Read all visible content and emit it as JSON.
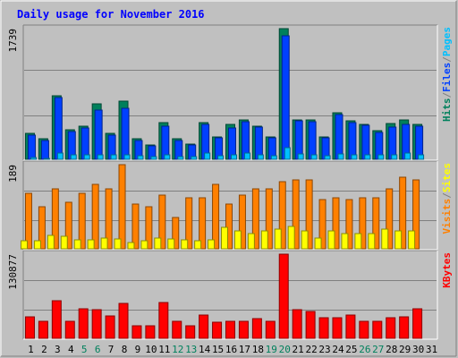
{
  "colors": {
    "background": "#c0c0c0",
    "plot_background": "#c0c0c0",
    "frame_light": "#ffffff",
    "frame_dark": "#808080",
    "title": "#0000ff",
    "gridline": "#808080",
    "hits": "#00805c",
    "files": "#0040ff",
    "pages": "#00c0ff",
    "visits": "#ff8000",
    "sites": "#ffff00",
    "kbytes": "#ff0000",
    "weekend_label": "#00805c",
    "weekday_label": "#000000"
  },
  "chart_data": {
    "type": "bar",
    "title": "Daily usage for November 2016",
    "days": [
      "1",
      "2",
      "3",
      "4",
      "5",
      "6",
      "7",
      "8",
      "9",
      "10",
      "11",
      "12",
      "13",
      "14",
      "15",
      "16",
      "17",
      "18",
      "19",
      "20",
      "21",
      "22",
      "23",
      "24",
      "25",
      "26",
      "27",
      "28",
      "29",
      "30",
      "31"
    ],
    "weekend_days": [
      "5",
      "6",
      "12",
      "13",
      "19",
      "20",
      "26",
      "27"
    ],
    "panels": [
      {
        "scale_label": "1739",
        "ymax": 1739,
        "legend": [
          {
            "text": "Hits",
            "color_key": "hits"
          },
          {
            "text": "/",
            "color_key": "frame_dark"
          },
          {
            "text": "Files",
            "color_key": "files"
          },
          {
            "text": "/",
            "color_key": "frame_dark"
          },
          {
            "text": "Pages",
            "color_key": "pages"
          }
        ],
        "series": [
          {
            "name": "Hits",
            "color_key": "hits",
            "values": [
              345,
              270,
              845,
              390,
              445,
              740,
              345,
              770,
              275,
              190,
              485,
              275,
              200,
              485,
              300,
              470,
              525,
              440,
              295,
              1739,
              525,
              525,
              295,
              620,
              510,
              460,
              380,
              475,
              525,
              465,
              0
            ]
          },
          {
            "name": "Files",
            "color_key": "files",
            "values": [
              320,
              250,
              825,
              365,
              420,
              650,
              320,
              680,
              255,
              175,
              440,
              255,
              190,
              460,
              290,
              420,
              505,
              425,
              280,
              1645,
              515,
              505,
              280,
              590,
              485,
              450,
              360,
              425,
              460,
              440,
              0
            ]
          },
          {
            "name": "Pages",
            "color_key": "pages",
            "values": [
              20,
              15,
              85,
              55,
              60,
              60,
              55,
              60,
              45,
              35,
              60,
              40,
              35,
              85,
              45,
              60,
              80,
              65,
              45,
              155,
              70,
              65,
              50,
              70,
              65,
              60,
              55,
              60,
              80,
              65,
              0
            ]
          }
        ]
      },
      {
        "scale_label": "189",
        "ymax": 189,
        "legend": [
          {
            "text": "Visits",
            "color_key": "visits"
          },
          {
            "text": "/",
            "color_key": "frame_dark"
          },
          {
            "text": "Sites",
            "color_key": "sites"
          }
        ],
        "series": [
          {
            "name": "Visits",
            "color_key": "visits",
            "values": [
              125,
              95,
              135,
              105,
              125,
              145,
              135,
              189,
              100,
              95,
              120,
              70,
              115,
              115,
              145,
              100,
              120,
              135,
              135,
              150,
              155,
              155,
              110,
              115,
              110,
              115,
              115,
              135,
              160,
              155,
              0
            ]
          },
          {
            "name": "Sites",
            "color_key": "sites",
            "values": [
              18,
              18,
              30,
              28,
              20,
              20,
              25,
              22,
              15,
              18,
              25,
              22,
              20,
              18,
              20,
              48,
              40,
              35,
              40,
              45,
              50,
              40,
              25,
              40,
              35,
              35,
              35,
              45,
              40,
              40,
              0
            ]
          }
        ]
      },
      {
        "scale_label": "130877",
        "ymax": 130877,
        "legend": [
          {
            "text": "KBytes",
            "color_key": "kbytes"
          }
        ],
        "series": [
          {
            "name": "KBytes",
            "color_key": "kbytes",
            "values": [
              34000,
              27000,
              59000,
              27000,
              46000,
              44000,
              35000,
              54000,
              20000,
              20000,
              56000,
              26000,
              20000,
              36000,
              25000,
              26000,
              27000,
              30000,
              26000,
              130877,
              44000,
              42000,
              32000,
              32000,
              36000,
              26000,
              27000,
              32000,
              34000,
              46000,
              0
            ]
          }
        ]
      }
    ]
  }
}
